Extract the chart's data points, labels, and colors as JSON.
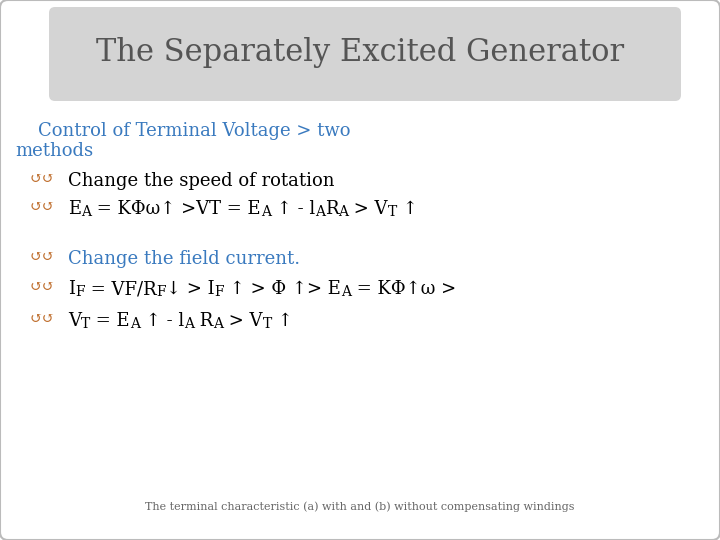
{
  "title": "The Separately Excited Generator",
  "title_color": "#555555",
  "title_bg_color": "#d4d4d4",
  "bg_color": "#ffffff",
  "slide_border_color": "#bbbbbb",
  "subtitle_color": "#3a7abf",
  "bullet_color": "#c07030",
  "body_color": "#000000",
  "subtitle_line1": "    Control of Terminal Voltage > two",
  "subtitle_line2": "methods",
  "bullet1": "Change the speed of rotation",
  "bullet3": "Change the field current.",
  "footer": "The terminal characteristic (a) with and (b) without compensating windings",
  "footer_color": "#666666",
  "title_fontsize": 22,
  "body_fontsize": 13,
  "sub_fontsize": 10,
  "footer_fontsize": 8
}
